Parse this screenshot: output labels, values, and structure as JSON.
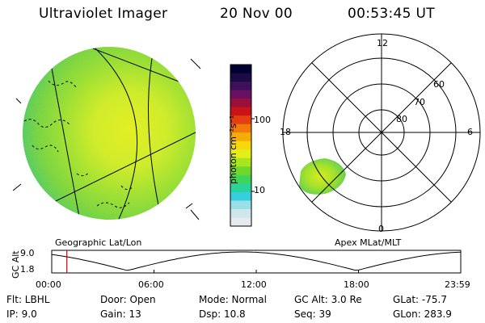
{
  "header": {
    "instrument": "Ultraviolet Imager",
    "date": "20 Nov 00",
    "time": "00:53:45 UT"
  },
  "image_panel": {
    "label": "Geographic Lat/Lon"
  },
  "colorbar": {
    "unit_label": "photon cm⁻²s⁻¹",
    "ticks": [
      "100",
      "10"
    ],
    "colors": [
      "#000033",
      "#1a0b44",
      "#3d0f5c",
      "#6a1060",
      "#9b103a",
      "#c81418",
      "#e24010",
      "#f07a0a",
      "#f5ac08",
      "#f6d80c",
      "#e4ef1a",
      "#a8e620",
      "#6fd82c",
      "#3fd55a",
      "#2ad39a",
      "#36cfe0",
      "#98dfe8",
      "#cfe6ea",
      "#e6eaec"
    ]
  },
  "polar_panel": {
    "label": "Apex MLat/MLT",
    "mlt_labels": [
      "12",
      "18",
      "6",
      "0"
    ],
    "mlat_labels": [
      "60",
      "70",
      "80"
    ]
  },
  "altitude_plot": {
    "axis_label": "GC Alt",
    "y_ticks": [
      "9.0",
      "1.8"
    ],
    "x_ticks": [
      "00:00",
      "06:00",
      "12:00",
      "18:00",
      "23:59"
    ],
    "marker_color": "#cc0000",
    "marker_time_fraction": 0.037
  },
  "info": {
    "flt": "Flt: LBHL",
    "ip": "IP:  9.0",
    "door": "Door: Open",
    "gain": "Gain: 13",
    "mode": "Mode: Normal",
    "dsp": "Dsp:   10.8",
    "gc_alt": "GC Alt: 3.0 Re",
    "seq": "Seq: 39",
    "glat": "GLat: -75.7",
    "glon": "GLon: 283.9"
  }
}
